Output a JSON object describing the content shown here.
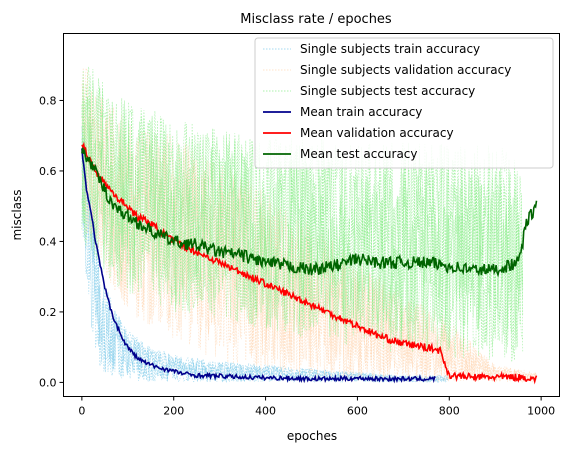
{
  "chart_data": {
    "type": "line",
    "title": "Misclass rate / epoches",
    "xlabel": "epoches",
    "ylabel": "misclass",
    "xlim": [
      -40,
      1040
    ],
    "ylim": [
      -0.04,
      0.99
    ],
    "xticks": [
      0,
      200,
      400,
      600,
      800,
      1000
    ],
    "yticks": [
      0.0,
      0.2,
      0.4,
      0.6,
      0.8
    ],
    "grid": false,
    "legend_position": "top-right",
    "single_subjects": [
      {
        "name": "Single subjects train accuracy",
        "color": "#87ceeb",
        "style": "dotted",
        "x": [
          0,
          20,
          40,
          60,
          100,
          150,
          200,
          300,
          400,
          500,
          600,
          700,
          800
        ],
        "y_upper": [
          0.75,
          0.55,
          0.35,
          0.25,
          0.15,
          0.1,
          0.08,
          0.06,
          0.05,
          0.04,
          0.03,
          0.02,
          0.02
        ],
        "y_lower": [
          0.45,
          0.12,
          0.03,
          0.01,
          0.005,
          0.003,
          0.002,
          0.001,
          0.001,
          0.001,
          0.001,
          0.001,
          0.001
        ]
      },
      {
        "name": "Single subjects validation accuracy",
        "color": "#ffdab9",
        "style": "dotted",
        "x": [
          0,
          50,
          100,
          200,
          300,
          400,
          500,
          600,
          700,
          780,
          900,
          990
        ],
        "y_upper": [
          0.93,
          0.8,
          0.75,
          0.7,
          0.62,
          0.55,
          0.45,
          0.35,
          0.25,
          0.2,
          0.05,
          0.03
        ],
        "y_lower": [
          0.45,
          0.3,
          0.2,
          0.12,
          0.06,
          0.03,
          0.01,
          0.005,
          0.002,
          0.001,
          0.001,
          0.001
        ]
      },
      {
        "name": "Single subjects test accuracy",
        "color": "#90ee90",
        "style": "dotted",
        "x": [
          0,
          50,
          100,
          200,
          300,
          400,
          500,
          600,
          700,
          800,
          900,
          960
        ],
        "y_upper": [
          0.93,
          0.85,
          0.8,
          0.75,
          0.72,
          0.7,
          0.7,
          0.68,
          0.68,
          0.68,
          0.68,
          0.62
        ],
        "y_lower": [
          0.4,
          0.3,
          0.25,
          0.2,
          0.18,
          0.15,
          0.12,
          0.1,
          0.08,
          0.07,
          0.06,
          0.05
        ]
      }
    ],
    "series": [
      {
        "name": "Mean train accuracy",
        "color": "#00008b",
        "x": [
          0,
          10,
          20,
          30,
          40,
          50,
          60,
          70,
          80,
          90,
          100,
          120,
          140,
          160,
          180,
          200,
          220,
          250,
          300,
          350,
          400,
          450,
          500,
          550,
          600,
          650,
          700,
          750,
          770
        ],
        "y": [
          0.66,
          0.55,
          0.48,
          0.4,
          0.33,
          0.27,
          0.22,
          0.18,
          0.15,
          0.12,
          0.1,
          0.07,
          0.055,
          0.045,
          0.038,
          0.032,
          0.025,
          0.02,
          0.018,
          0.015,
          0.013,
          0.012,
          0.01,
          0.01,
          0.012,
          0.01,
          0.01,
          0.01,
          0.01
        ],
        "noise": 0.006
      },
      {
        "name": "Mean validation accuracy",
        "color": "#ff0000",
        "x": [
          0,
          20,
          40,
          60,
          80,
          100,
          120,
          140,
          160,
          180,
          200,
          250,
          300,
          350,
          400,
          450,
          500,
          550,
          600,
          650,
          700,
          750,
          780,
          800,
          850,
          900,
          950,
          990
        ],
        "y": [
          0.68,
          0.62,
          0.58,
          0.55,
          0.52,
          0.5,
          0.47,
          0.46,
          0.44,
          0.42,
          0.4,
          0.37,
          0.34,
          0.31,
          0.28,
          0.25,
          0.22,
          0.19,
          0.16,
          0.13,
          0.11,
          0.1,
          0.09,
          0.02,
          0.015,
          0.015,
          0.015,
          0.01
        ],
        "noise": 0.01
      },
      {
        "name": "Mean test accuracy",
        "color": "#006400",
        "x": [
          0,
          20,
          40,
          60,
          80,
          100,
          150,
          200,
          250,
          300,
          350,
          400,
          450,
          500,
          550,
          600,
          650,
          700,
          750,
          800,
          850,
          900,
          950,
          970,
          990
        ],
        "y": [
          0.66,
          0.62,
          0.57,
          0.52,
          0.49,
          0.47,
          0.43,
          0.4,
          0.39,
          0.37,
          0.36,
          0.34,
          0.33,
          0.32,
          0.33,
          0.35,
          0.34,
          0.34,
          0.34,
          0.33,
          0.32,
          0.32,
          0.34,
          0.46,
          0.5
        ],
        "noise": 0.018
      }
    ]
  }
}
